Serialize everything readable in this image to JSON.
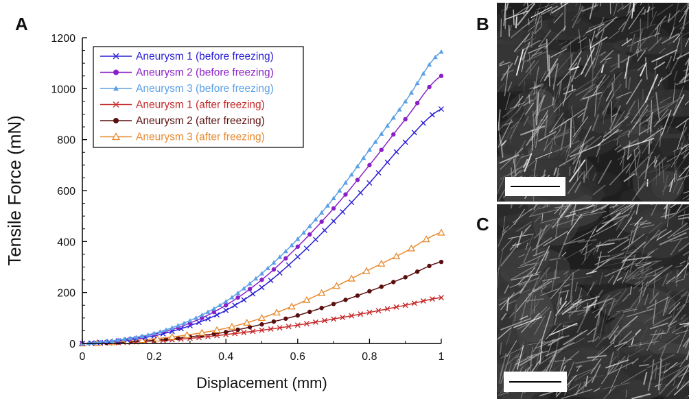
{
  "figure": {
    "panel_labels": {
      "a": "A",
      "b": "B",
      "c": "C"
    }
  },
  "chart_data": {
    "type": "line",
    "xlabel": "Displacement (mm)",
    "ylabel": "Tensile Force (mN)",
    "xlim": [
      0,
      1
    ],
    "ylim": [
      0,
      1200
    ],
    "x_ticks": [
      "0",
      "0.2",
      "0.4",
      "0.6",
      "0.8",
      "1"
    ],
    "y_ticks": [
      "0",
      "200",
      "400",
      "600",
      "800",
      "1000",
      "1200"
    ],
    "grid": false,
    "legend_position": "top-left",
    "x": [
      0,
      0.1,
      0.2,
      0.3,
      0.4,
      0.5,
      0.6,
      0.7,
      0.8,
      0.9,
      1.0
    ],
    "series": [
      {
        "name": "Aneurysm 1 (before freezing)",
        "color": "#2a1fd6",
        "marker": "x",
        "values": [
          0,
          10,
          30,
          70,
          130,
          220,
          340,
          480,
          630,
          790,
          920
        ]
      },
      {
        "name": "Aneurysm 2 (before freezing)",
        "color": "#8a1fc8",
        "marker": "dot",
        "values": [
          0,
          12,
          36,
          80,
          150,
          250,
          380,
          530,
          700,
          880,
          1050
        ]
      },
      {
        "name": "Aneurysm 3 (before freezing)",
        "color": "#5aa0e6",
        "marker": "triangle",
        "values": [
          0,
          14,
          40,
          90,
          165,
          275,
          410,
          570,
          760,
          950,
          1145
        ]
      },
      {
        "name": "Aneurysm 1 (after freezing)",
        "color": "#c62a2a",
        "marker": "x",
        "values": [
          0,
          3,
          10,
          20,
          35,
          52,
          72,
          96,
          122,
          150,
          180
        ]
      },
      {
        "name": "Aneurysm 2 (after freezing)",
        "color": "#5a0f0f",
        "marker": "dot",
        "values": [
          0,
          4,
          12,
          26,
          45,
          75,
          110,
          155,
          205,
          260,
          320
        ]
      },
      {
        "name": "Aneurysm 3 (after freezing)",
        "color": "#e88a30",
        "marker": "open-triangle",
        "values": [
          0,
          6,
          18,
          35,
          60,
          100,
          155,
          220,
          290,
          360,
          435
        ]
      }
    ]
  }
}
